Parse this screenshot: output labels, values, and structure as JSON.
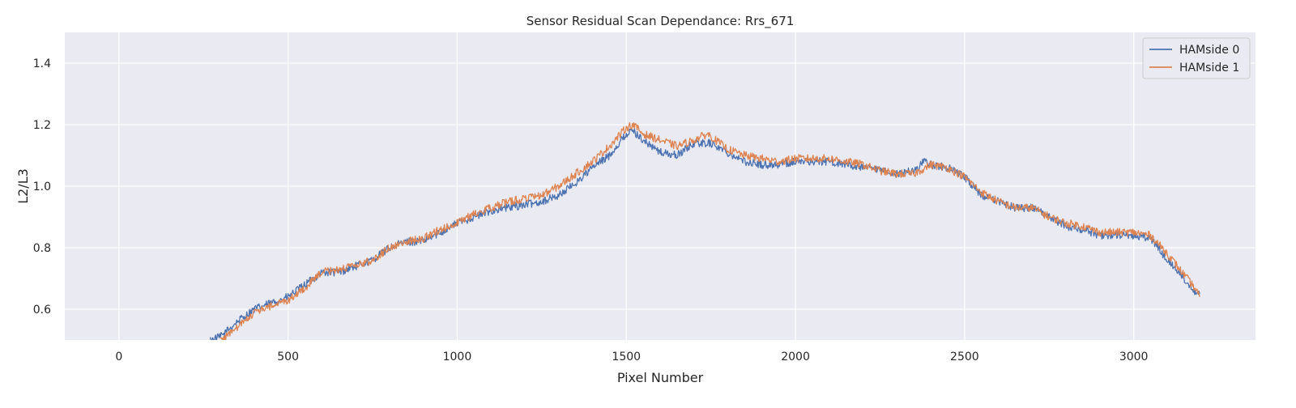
{
  "chart_data": {
    "type": "line",
    "title": "Sensor Residual Scan Dependance: Rrs_671",
    "xlabel": "Pixel Number",
    "ylabel": "L2/L3",
    "xlim": [
      -160,
      3360
    ],
    "ylim": [
      0.5,
      1.5
    ],
    "xticks": [
      0,
      500,
      1000,
      1500,
      2000,
      2500,
      3000
    ],
    "yticks": [
      0.6,
      0.8,
      1.0,
      1.2,
      1.4
    ],
    "xtick_labels": [
      "0",
      "500",
      "1000",
      "1500",
      "2000",
      "2500",
      "3000"
    ],
    "ytick_labels": [
      "0.6",
      "0.8",
      "1.0",
      "1.2",
      "1.4"
    ],
    "grid": true,
    "legend_position": "top-right",
    "background_color": "#eaeaf2",
    "series": [
      {
        "name": "HAMside 0",
        "color": "#4c72b0",
        "noise": 0.013,
        "x": [
          270,
          300,
          350,
          400,
          450,
          500,
          550,
          600,
          650,
          700,
          750,
          800,
          850,
          900,
          950,
          1000,
          1050,
          1100,
          1150,
          1200,
          1250,
          1300,
          1350,
          1400,
          1450,
          1500,
          1520,
          1550,
          1600,
          1650,
          1700,
          1750,
          1800,
          1850,
          1900,
          1950,
          2000,
          2050,
          2100,
          2150,
          2200,
          2250,
          2300,
          2350,
          2380,
          2400,
          2450,
          2500,
          2550,
          2600,
          2650,
          2700,
          2750,
          2800,
          2850,
          2900,
          2950,
          3000,
          3050,
          3100,
          3150,
          3180,
          3195
        ],
        "y": [
          0.5,
          0.51,
          0.56,
          0.6,
          0.62,
          0.64,
          0.68,
          0.72,
          0.72,
          0.74,
          0.76,
          0.8,
          0.82,
          0.82,
          0.85,
          0.88,
          0.9,
          0.92,
          0.93,
          0.94,
          0.95,
          0.97,
          1.01,
          1.06,
          1.1,
          1.17,
          1.18,
          1.15,
          1.11,
          1.1,
          1.14,
          1.14,
          1.11,
          1.08,
          1.07,
          1.07,
          1.08,
          1.08,
          1.08,
          1.07,
          1.06,
          1.05,
          1.04,
          1.05,
          1.08,
          1.07,
          1.06,
          1.03,
          0.97,
          0.95,
          0.93,
          0.93,
          0.9,
          0.87,
          0.86,
          0.84,
          0.84,
          0.84,
          0.83,
          0.76,
          0.7,
          0.66,
          0.65
        ]
      },
      {
        "name": "HAMside 1",
        "color": "#dd8452",
        "noise": 0.013,
        "x": [
          300,
          350,
          400,
          450,
          500,
          550,
          600,
          650,
          700,
          750,
          800,
          850,
          900,
          950,
          1000,
          1050,
          1100,
          1150,
          1200,
          1250,
          1300,
          1350,
          1400,
          1450,
          1500,
          1520,
          1550,
          1600,
          1650,
          1700,
          1740,
          1800,
          1850,
          1900,
          1950,
          2000,
          2050,
          2100,
          2150,
          2200,
          2250,
          2300,
          2350,
          2400,
          2450,
          2500,
          2550,
          2600,
          2650,
          2700,
          2750,
          2800,
          2850,
          2900,
          2950,
          3000,
          3050,
          3100,
          3150,
          3180,
          3195
        ],
        "y": [
          0.5,
          0.54,
          0.59,
          0.61,
          0.63,
          0.67,
          0.72,
          0.73,
          0.74,
          0.76,
          0.8,
          0.82,
          0.83,
          0.86,
          0.88,
          0.91,
          0.93,
          0.95,
          0.96,
          0.97,
          1.0,
          1.04,
          1.08,
          1.13,
          1.19,
          1.2,
          1.17,
          1.15,
          1.13,
          1.15,
          1.17,
          1.12,
          1.1,
          1.09,
          1.08,
          1.09,
          1.09,
          1.09,
          1.08,
          1.07,
          1.05,
          1.04,
          1.04,
          1.07,
          1.06,
          1.03,
          0.98,
          0.95,
          0.93,
          0.93,
          0.9,
          0.88,
          0.87,
          0.85,
          0.85,
          0.85,
          0.84,
          0.78,
          0.71,
          0.67,
          0.64
        ]
      }
    ]
  }
}
